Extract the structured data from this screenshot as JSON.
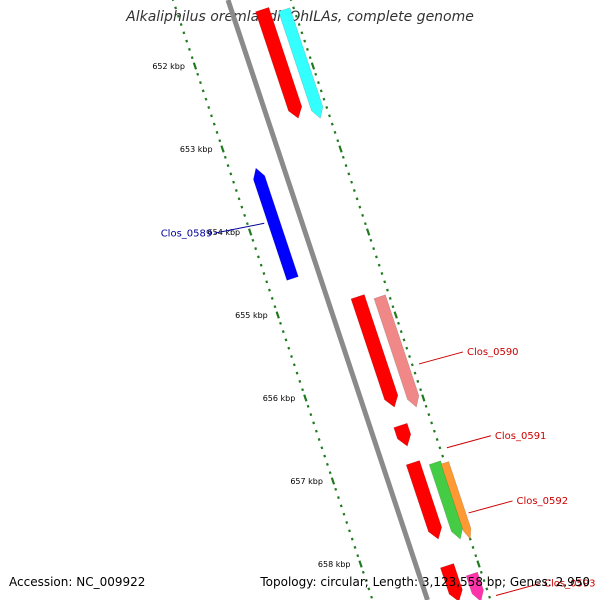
{
  "title": "Alkaliphilus oremlandii OhILAs, complete genome",
  "accession": "Accession: NC_009922",
  "summary": "Topology: circular; Length: 3,123,558 bp; Genes: 2,950",
  "colors": {
    "backbone": "#8a8a8a",
    "tick": "#1f7a1f",
    "label_forward": "#cc0000",
    "label_reverse": "#000099"
  },
  "ruler": {
    "ticks": [
      {
        "kbp": 652,
        "label": "652 kbp"
      },
      {
        "kbp": 653,
        "label": "653 kbp"
      },
      {
        "kbp": 654,
        "label": "654 kbp"
      },
      {
        "kbp": 655,
        "label": "655 kbp"
      },
      {
        "kbp": 656,
        "label": "656 kbp"
      },
      {
        "kbp": 657,
        "label": "657 kbp"
      },
      {
        "kbp": 658,
        "label": "658 kbp"
      }
    ]
  },
  "features": [
    {
      "name": "",
      "track": "fwd1",
      "start": 651.32,
      "end": 652.63,
      "color": "#ff0000"
    },
    {
      "name": "",
      "track": "fwd2",
      "start": 651.32,
      "end": 652.63,
      "color": "#33ffff"
    },
    {
      "name": "Clos_0589",
      "track": "rev1",
      "start": 653.23,
      "end": 654.56,
      "color": "#0000ff"
    },
    {
      "name": "Clos_0590",
      "track": "fwd1",
      "start": 654.78,
      "end": 656.11,
      "color": "#ff0000"
    },
    {
      "name": "",
      "track": "fwd2",
      "start": 654.78,
      "end": 656.11,
      "color": "#f08888"
    },
    {
      "name": "Clos_0591",
      "track": "fwd1",
      "start": 656.33,
      "end": 656.58,
      "color": "#ff0000"
    },
    {
      "name": "Clos_0592",
      "track": "fwd1",
      "start": 656.78,
      "end": 657.7,
      "color": "#ff0000"
    },
    {
      "name": "",
      "track": "fwd2",
      "start": 656.78,
      "end": 657.7,
      "color": "#44cc44"
    },
    {
      "name": "",
      "track": "fwd3",
      "start": 656.78,
      "end": 657.7,
      "color": "#ff9933"
    },
    {
      "name": "Clos_0593",
      "track": "fwd1",
      "start": 658.02,
      "end": 658.45,
      "color": "#ff0000"
    },
    {
      "name": "",
      "track": "fwd2",
      "start": 658.12,
      "end": 658.45,
      "color": "#ff33aa"
    }
  ]
}
